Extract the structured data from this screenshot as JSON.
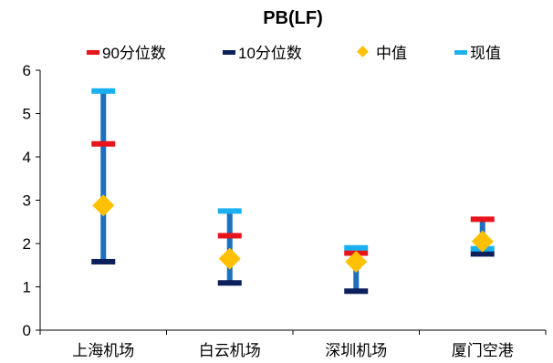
{
  "chart_data": {
    "type": "range",
    "title": "PB(LF)",
    "categories": [
      "上海机场",
      "白云机场",
      "深圳机场",
      "厦门空港"
    ],
    "series": [
      {
        "name": "90分位数",
        "values": [
          4.3,
          2.18,
          1.78,
          2.56
        ]
      },
      {
        "name": "10分位数",
        "values": [
          1.58,
          1.09,
          0.9,
          1.76
        ]
      },
      {
        "name": "中值",
        "values": [
          2.88,
          1.65,
          1.58,
          2.05
        ]
      },
      {
        "name": "现值",
        "values": [
          5.52,
          2.75,
          1.9,
          1.88
        ]
      }
    ],
    "ylim": [
      0,
      6
    ],
    "yticks": [
      0,
      1,
      2,
      3,
      4,
      5,
      6
    ],
    "xlabel": "",
    "ylabel": "",
    "legend_position": "top",
    "grid": false,
    "colors": {
      "range_line": "#1f6fbf",
      "p90": "#e8141c",
      "p10": "#0b1f5c",
      "median": "#ffc000",
      "current": "#1ab0f0",
      "axis": "#000000"
    }
  }
}
